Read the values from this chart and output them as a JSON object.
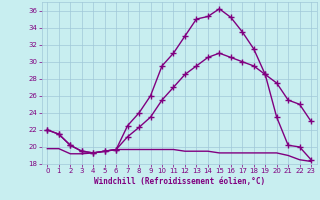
{
  "xlabel": "Windchill (Refroidissement éolien,°C)",
  "bg_color": "#c8eef0",
  "line_color": "#800080",
  "grid_color": "#a0c8d8",
  "xlim": [
    -0.5,
    23.5
  ],
  "ylim": [
    18,
    37
  ],
  "xticks": [
    0,
    1,
    2,
    3,
    4,
    5,
    6,
    7,
    8,
    9,
    10,
    11,
    12,
    13,
    14,
    15,
    16,
    17,
    18,
    19,
    20,
    21,
    22,
    23
  ],
  "yticks": [
    18,
    20,
    22,
    24,
    26,
    28,
    30,
    32,
    34,
    36
  ],
  "hours": [
    0,
    1,
    2,
    3,
    4,
    5,
    6,
    7,
    8,
    9,
    10,
    11,
    12,
    13,
    14,
    15,
    16,
    17,
    18,
    19,
    20,
    21,
    22,
    23
  ],
  "line1": [
    22.0,
    21.5,
    20.2,
    19.5,
    19.3,
    19.5,
    19.7,
    22.5,
    24.0,
    26.0,
    29.5,
    31.0,
    33.0,
    35.0,
    35.3,
    36.2,
    35.2,
    33.5,
    31.5,
    28.5,
    23.5,
    20.2,
    20.0,
    18.5
  ],
  "line2": [
    22.0,
    21.5,
    20.2,
    19.5,
    19.3,
    19.5,
    19.7,
    21.2,
    22.3,
    23.5,
    25.5,
    27.0,
    28.5,
    29.5,
    30.5,
    31.0,
    30.5,
    30.0,
    29.5,
    28.5,
    27.5,
    25.5,
    25.0,
    23.0
  ],
  "line3_x": [
    0,
    1,
    2,
    3,
    4,
    5,
    6,
    7,
    8,
    9,
    10,
    11,
    12,
    13,
    14,
    15,
    16,
    17,
    18,
    19,
    20,
    21,
    22,
    23
  ],
  "line3_y": [
    19.8,
    19.8,
    19.2,
    19.2,
    19.3,
    19.5,
    19.7,
    19.7,
    19.7,
    19.7,
    19.7,
    19.7,
    19.5,
    19.5,
    19.5,
    19.3,
    19.3,
    19.3,
    19.3,
    19.3,
    19.3,
    19.0,
    18.5,
    18.3
  ]
}
